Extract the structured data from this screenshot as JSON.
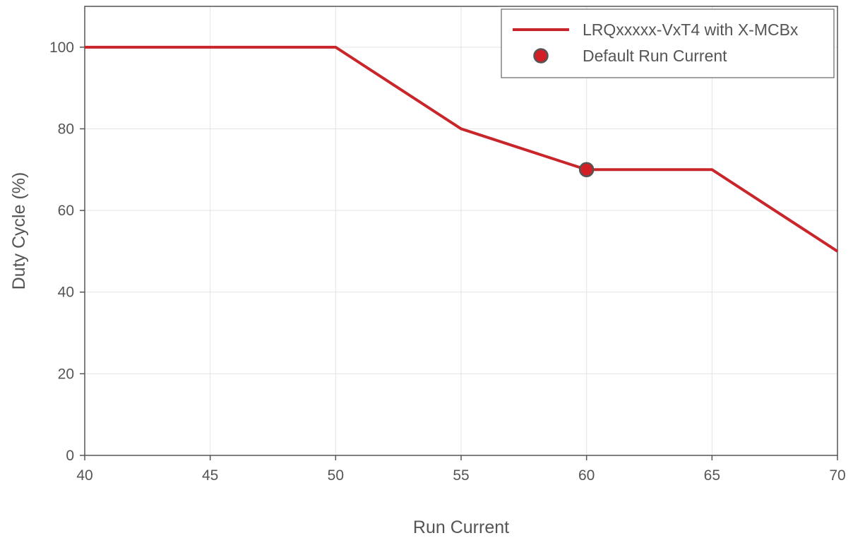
{
  "chart_data": {
    "type": "line",
    "title": "",
    "xlabel": "Run Current",
    "ylabel": "Duty Cycle (%)",
    "xlim": [
      40,
      70
    ],
    "ylim": [
      0,
      110
    ],
    "x_ticks": [
      40,
      45,
      50,
      55,
      60,
      65,
      70
    ],
    "y_ticks": [
      0,
      20,
      40,
      60,
      80,
      100
    ],
    "x_tick_labels": [
      "40",
      "45",
      "50",
      "55",
      "60",
      "65",
      "70"
    ],
    "y_tick_labels": [
      "0",
      "20",
      "40",
      "60",
      "80",
      "100"
    ],
    "grid": true,
    "legend_position": "top-right",
    "series": [
      {
        "name": "LRQxxxxx-VxT4 with X-MCBx",
        "kind": "line",
        "color": "#c8262b",
        "x": [
          40,
          50,
          55,
          60,
          65,
          70
        ],
        "y": [
          100,
          100,
          80,
          70,
          70,
          50
        ]
      },
      {
        "name": "Default Run Current",
        "kind": "marker",
        "color": "#d21f26",
        "edge_color": "#555555",
        "x": [
          60
        ],
        "y": [
          70
        ]
      }
    ]
  }
}
